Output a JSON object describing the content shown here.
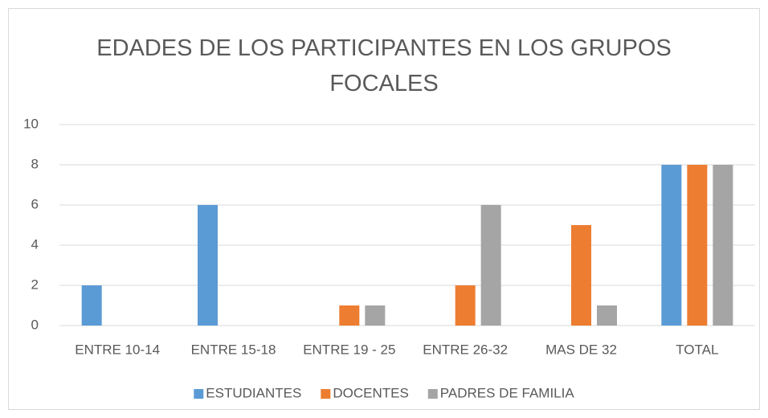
{
  "chart_data": {
    "type": "bar",
    "title": "EDADES DE LOS PARTICIPANTES EN LOS GRUPOS FOCALES",
    "categories": [
      "ENTRE 10-14",
      "ENTRE 15-18",
      "ENTRE 19 - 25",
      "ENTRE 26-32",
      "MAS DE 32",
      "TOTAL"
    ],
    "series": [
      {
        "name": "ESTUDIANTES",
        "color": "#5b9bd5",
        "values": [
          2,
          6,
          0,
          0,
          0,
          8
        ]
      },
      {
        "name": "DOCENTES",
        "color": "#ed7d31",
        "values": [
          0,
          0,
          1,
          2,
          5,
          8
        ]
      },
      {
        "name": "PADRES DE FAMILIA",
        "color": "#a5a5a5",
        "values": [
          0,
          0,
          1,
          6,
          1,
          8
        ]
      }
    ],
    "ylim": [
      0,
      10
    ],
    "yticks": [
      0,
      2,
      4,
      6,
      8,
      10
    ],
    "grid": true,
    "legend": "bottom"
  }
}
